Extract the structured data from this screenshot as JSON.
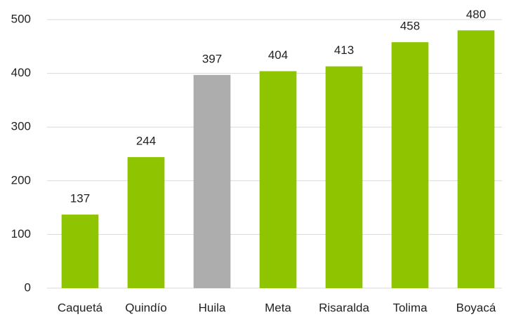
{
  "chart_data": {
    "type": "bar",
    "categories": [
      "Caquetá",
      "Quindío",
      "Huila",
      "Meta",
      "Risaralda",
      "Tolima",
      "Boyacá"
    ],
    "values": [
      137,
      244,
      397,
      404,
      413,
      458,
      480
    ],
    "colors": [
      "#8fc400",
      "#8fc400",
      "#adadad",
      "#8fc400",
      "#8fc400",
      "#8fc400",
      "#8fc400"
    ],
    "ylim": [
      0,
      500
    ],
    "yticks": [
      0,
      100,
      200,
      300,
      400,
      500
    ],
    "grid": true
  }
}
